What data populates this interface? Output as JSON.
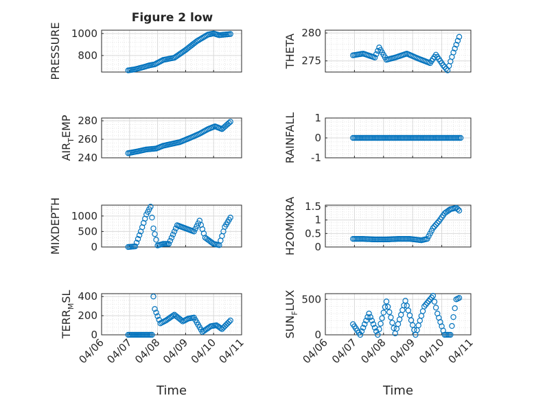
{
  "figure": {
    "title": "Figure 2 low",
    "background": "#ffffff",
    "marker_color": "#0072bd"
  },
  "chart_data": [
    {
      "type": "scatter",
      "panel": "PRESSURE",
      "column": "left",
      "title": "Figure 2 low",
      "ylabel": "PRESSURE",
      "ylabel_sub": [],
      "ylim": [
        650,
        1030
      ],
      "yticks": [
        800,
        1000
      ],
      "ytick_labels": [
        "800",
        "1000"
      ],
      "xlabel": "",
      "series": [
        {
          "name": "PRESSURE",
          "x": [
            0.95,
            1.2,
            1.5,
            1.7,
            1.9,
            2.2,
            2.6,
            3.0,
            3.4,
            3.8,
            4.0,
            4.2,
            4.6
          ],
          "y": [
            665,
            675,
            695,
            710,
            720,
            760,
            780,
            850,
            930,
            990,
            1000,
            985,
            995
          ]
        }
      ]
    },
    {
      "type": "scatter",
      "panel": "THETA",
      "column": "right",
      "ylabel": "THETA",
      "ylabel_sub": [],
      "ylim": [
        273,
        280.5
      ],
      "yticks": [
        275,
        280
      ],
      "ytick_labels": [
        "275",
        "280"
      ],
      "xlabel": "",
      "series": [
        {
          "name": "THETA",
          "x": [
            0.95,
            1.3,
            1.7,
            1.85,
            2.1,
            2.4,
            2.8,
            3.2,
            3.6,
            3.8,
            4.05,
            4.2,
            4.4,
            4.6
          ],
          "y": [
            276,
            276.3,
            275.6,
            277.4,
            275.2,
            275.6,
            276.3,
            275.4,
            274.6,
            276.1,
            274.2,
            273.3,
            276.5,
            279.3
          ]
        }
      ]
    },
    {
      "type": "scatter",
      "panel": "AIR_TEMP",
      "column": "left",
      "ylabel": "AIR",
      "ylabel_sub": [
        "T",
        "EMP"
      ],
      "ylim": [
        240,
        283
      ],
      "yticks": [
        240,
        260,
        280
      ],
      "ytick_labels": [
        "240",
        "260",
        "280"
      ],
      "xlabel": "",
      "series": [
        {
          "name": "AIR_TEMP",
          "x": [
            0.95,
            1.3,
            1.6,
            1.95,
            2.2,
            2.5,
            2.8,
            3.2,
            3.5,
            3.8,
            4.05,
            4.3,
            4.6
          ],
          "y": [
            245,
            247,
            249,
            250,
            253,
            255,
            257,
            262,
            266,
            271,
            274,
            271,
            279
          ]
        }
      ]
    },
    {
      "type": "scatter",
      "panel": "RAINFALL",
      "column": "right",
      "ylabel": "RAINFALL",
      "ylabel_sub": [],
      "ylim": [
        -1,
        1
      ],
      "yticks": [
        -1,
        0,
        1
      ],
      "ytick_labels": [
        "-1",
        "0",
        "1"
      ],
      "xlabel": "",
      "series": [
        {
          "name": "RAINFALL",
          "x": [
            0.95,
            1.3,
            1.7,
            2.1,
            2.5,
            2.9,
            3.3,
            3.7,
            4.1,
            4.5,
            4.65
          ],
          "y": [
            0,
            0,
            0,
            0,
            0,
            0,
            0,
            0,
            0,
            0,
            0
          ]
        }
      ]
    },
    {
      "type": "scatter",
      "panel": "MIXDEPTH",
      "column": "left",
      "ylabel": "MIXDEPTH",
      "ylabel_sub": [],
      "ylim": [
        0,
        1350
      ],
      "yticks": [
        0,
        500,
        1000
      ],
      "ytick_labels": [
        "0",
        "500",
        "1000"
      ],
      "xlabel": "",
      "series": [
        {
          "name": "MIXDEPTH",
          "x": [
            0.95,
            1.2,
            1.4,
            1.6,
            1.75,
            1.85,
            2.0,
            2.2,
            2.4,
            2.7,
            3.0,
            3.3,
            3.5,
            3.7,
            4.0,
            4.2,
            4.4,
            4.6
          ],
          "y": [
            0,
            20,
            500,
            1050,
            1300,
            600,
            50,
            100,
            100,
            700,
            600,
            500,
            850,
            300,
            100,
            60,
            650,
            950
          ]
        }
      ]
    },
    {
      "type": "scatter",
      "panel": "H2OMIXRA",
      "column": "right",
      "ylabel": "H2OMIXRA",
      "ylabel_sub": [],
      "ylim": [
        0,
        1.55
      ],
      "yticks": [
        0,
        0.5,
        1,
        1.5
      ],
      "ytick_labels": [
        "0",
        "0.5",
        "1",
        "1.5"
      ],
      "xlabel": "",
      "series": [
        {
          "name": "H2OMIXRA",
          "x": [
            0.95,
            1.3,
            1.7,
            2.1,
            2.5,
            2.9,
            3.3,
            3.5,
            3.7,
            3.9,
            4.1,
            4.3,
            4.5,
            4.6
          ],
          "y": [
            0.3,
            0.3,
            0.28,
            0.28,
            0.3,
            0.3,
            0.25,
            0.3,
            0.7,
            0.95,
            1.25,
            1.4,
            1.45,
            1.35
          ]
        }
      ]
    },
    {
      "type": "scatter",
      "panel": "TERR_MSL",
      "column": "left",
      "ylabel": "TERR",
      "ylabel_sub": [
        "M",
        "SL"
      ],
      "ylim": [
        0,
        430
      ],
      "yticks": [
        0,
        200,
        400
      ],
      "ytick_labels": [
        "0",
        "200",
        "400"
      ],
      "xlabel": "Time",
      "xtick_labels": [
        "04/06",
        "04/07",
        "04/08",
        "04/09",
        "04/10",
        "04/11"
      ],
      "series": [
        {
          "name": "TERR_MSL",
          "x": [
            0.95,
            1.2,
            1.5,
            1.8,
            1.85,
            1.9,
            2.1,
            2.3,
            2.6,
            2.9,
            3.1,
            3.3,
            3.6,
            3.9,
            4.1,
            4.3,
            4.6
          ],
          "y": [
            0,
            0,
            0,
            0,
            400,
            270,
            120,
            150,
            210,
            140,
            170,
            180,
            30,
            90,
            100,
            60,
            150
          ]
        }
      ]
    },
    {
      "type": "scatter",
      "panel": "SUN_FLUX",
      "column": "right",
      "ylabel": "SUN",
      "ylabel_sub": [
        "F",
        "LUX"
      ],
      "ylim": [
        0,
        580
      ],
      "yticks": [
        0,
        500
      ],
      "ytick_labels": [
        "0",
        "500"
      ],
      "xlabel": "Time",
      "xtick_labels": [
        "04/06",
        "04/07",
        "04/08",
        "04/09",
        "04/10",
        "04/11"
      ],
      "series": [
        {
          "name": "SUN_FLUX",
          "x": [
            0.95,
            1.2,
            1.5,
            1.8,
            2.1,
            2.4,
            2.75,
            3.1,
            3.4,
            3.7,
            3.85,
            4.1,
            4.3,
            4.5,
            4.6
          ],
          "y": [
            150,
            0,
            300,
            0,
            470,
            20,
            480,
            0,
            400,
            550,
            300,
            0,
            0,
            500,
            520
          ]
        }
      ]
    }
  ]
}
